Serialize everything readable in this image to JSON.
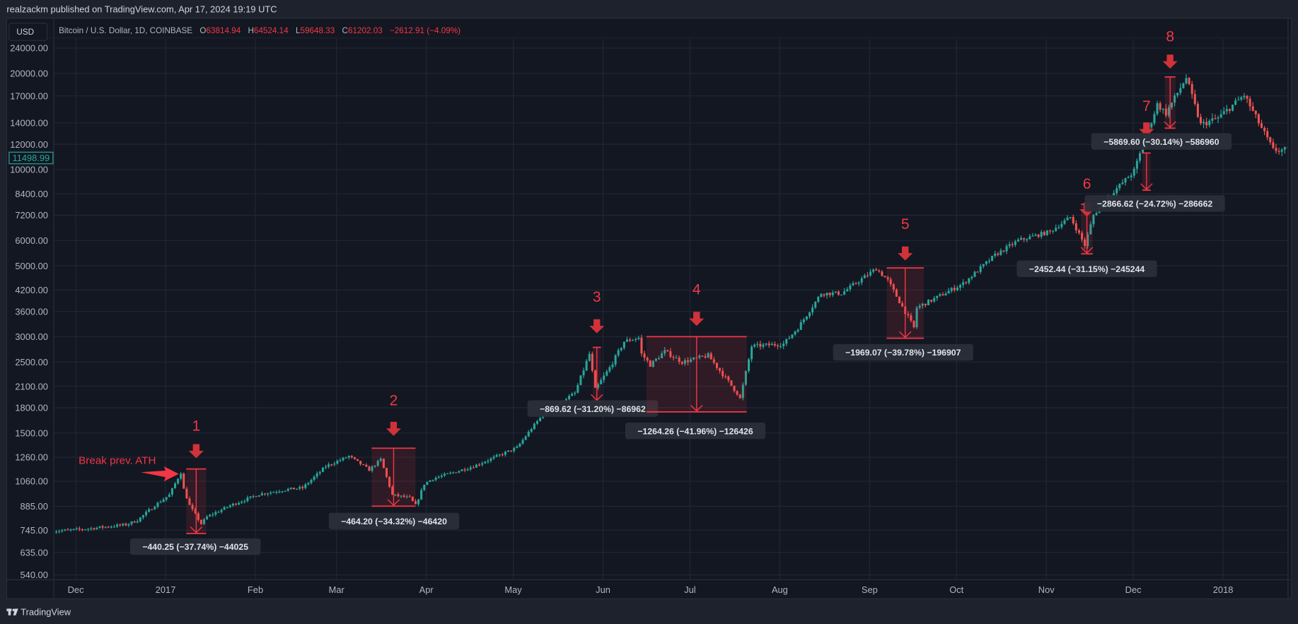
{
  "header": {
    "publisher_line": "realzackm published on TradingView.com, Apr 17, 2024 19:19 UTC"
  },
  "toolbar": {
    "currency_button": "USD"
  },
  "legend": {
    "symbol": "Bitcoin / U.S. Dollar, 1D, COINBASE",
    "o_label": "O",
    "o_value": "63814.94",
    "h_label": "H",
    "h_value": "64524.14",
    "l_label": "L",
    "l_value": "59648.33",
    "c_label": "C",
    "c_value": "61202.03",
    "change": "−2612.91 (−4.09%)"
  },
  "footer": {
    "brand": "TradingView"
  },
  "colors": {
    "up": "#26a69a",
    "down": "#ef5350",
    "annotation": "#f23645",
    "arrow": "#d13239",
    "background": "#131722"
  },
  "chart_data": {
    "type": "candlestick",
    "title": "Bitcoin / U.S. Dollar, 1D, COINBASE",
    "scale": "log",
    "last_price": "11498.99",
    "price_ticks": [
      "24000.00",
      "20000.00",
      "17000.00",
      "14000.00",
      "12000.00",
      "10000.00",
      "8400.00",
      "7200.00",
      "6000.00",
      "5000.00",
      "4200.00",
      "3600.00",
      "3000.00",
      "2500.00",
      "2100.00",
      "1800.00",
      "1500.00",
      "1260.00",
      "1060.00",
      "885.00",
      "745.00",
      "635.00",
      "540.00"
    ],
    "time_ticks": [
      "Dec",
      "2017",
      "Feb",
      "Mar",
      "Apr",
      "May",
      "Jun",
      "Jul",
      "Aug",
      "Sep",
      "Oct",
      "Nov",
      "Dec",
      "2018"
    ],
    "approx_close_path": {
      "day_offset_from_2017_01_01": [
        -41,
        -31,
        -16,
        -12,
        -6,
        -1,
        3,
        4,
        6,
        10,
        12,
        20,
        30,
        40,
        45,
        53,
        61,
        68,
        72,
        76,
        82,
        84,
        87,
        90,
        104,
        119,
        124,
        129,
        139,
        144,
        146,
        151,
        156,
        161,
        162,
        165,
        170,
        176,
        185,
        195,
        196,
        200,
        211,
        216,
        224,
        231,
        243,
        247,
        256,
        257,
        262,
        273,
        284,
        292,
        303,
        310,
        315,
        318,
        323,
        329,
        332,
        340,
        343,
        350,
        355,
        361,
        370,
        380,
        385
      ],
      "close": [
        740,
        750,
        775,
        800,
        890,
        960,
        1130,
        1000,
        890,
        780,
        820,
        890,
        965,
        1000,
        1010,
        1180,
        1270,
        1150,
        1240,
        960,
        940,
        890,
        1040,
        1080,
        1180,
        1350,
        1550,
        1760,
        2000,
        2650,
        2050,
        2400,
        2900,
        2980,
        2650,
        2450,
        2700,
        2500,
        2620,
        2000,
        1920,
        2800,
        2850,
        3200,
        4100,
        4100,
        4900,
        4500,
        3200,
        3700,
        3900,
        4400,
        5400,
        6000,
        6400,
        7100,
        5800,
        7200,
        8200,
        9300,
        9900,
        16000,
        15000,
        19400,
        13800,
        14500,
        17100,
        11500,
        11499
      ]
    },
    "annotations": {
      "note": "Break prev. ATH",
      "drawdowns": [
        {
          "number": "1",
          "label": "−440.25 (−37.74%) −44025"
        },
        {
          "number": "2",
          "label": "−464.20 (−34.32%) −46420"
        },
        {
          "number": "3",
          "label": "−869.62 (−31.20%) −86962"
        },
        {
          "number": "4",
          "label": "−1264.26 (−41.96%) −126426"
        },
        {
          "number": "5",
          "label": "−1969.07 (−39.78%) −196907"
        },
        {
          "number": "6",
          "label": "−2452.44 (−31.15%) −245244"
        },
        {
          "number": "7",
          "label": "−2866.62 (−24.72%) −286662"
        },
        {
          "number": "8",
          "label": "−5869.60 (−30.14%) −586960"
        }
      ]
    }
  }
}
